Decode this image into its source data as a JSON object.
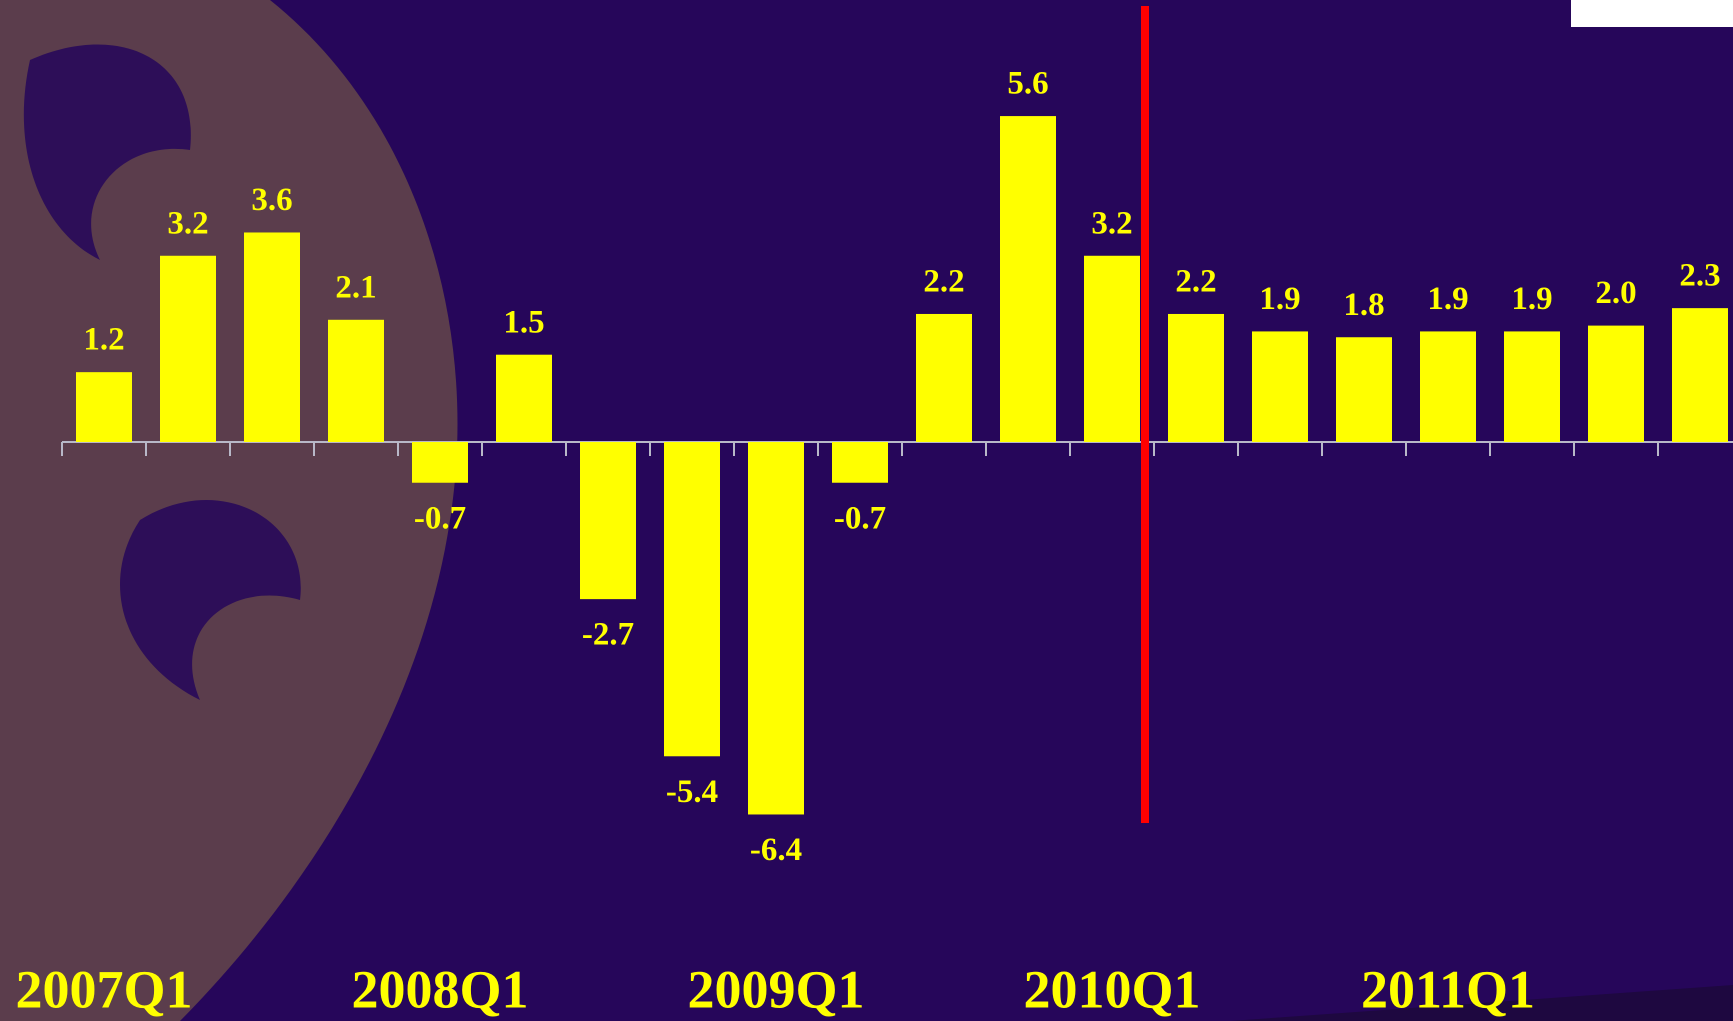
{
  "chart_data": {
    "type": "bar",
    "categories": [
      "2007Q1",
      null,
      null,
      null,
      "2008Q1",
      null,
      null,
      null,
      "2009Q1",
      null,
      null,
      null,
      "2010Q1",
      null,
      null,
      null,
      "2011Q1",
      null,
      null,
      null
    ],
    "values": [
      1.2,
      3.2,
      3.6,
      2.1,
      -0.7,
      1.5,
      -2.7,
      -5.4,
      -6.4,
      -0.7,
      2.2,
      5.6,
      3.2,
      2.2,
      1.9,
      1.8,
      1.9,
      1.9,
      2.0,
      2.3
    ],
    "value_labels": [
      "1.2",
      "3.2",
      "3.6",
      "2.1",
      "-0.7",
      "1.5",
      "-2.7",
      "-5.4",
      "-6.4",
      "-0.7",
      "2.2",
      "5.6",
      "3.2",
      "2.2",
      "1.9",
      "1.8",
      "1.9",
      "1.9",
      "2.0",
      "2.3"
    ],
    "color": "#ffff00"
  }
}
